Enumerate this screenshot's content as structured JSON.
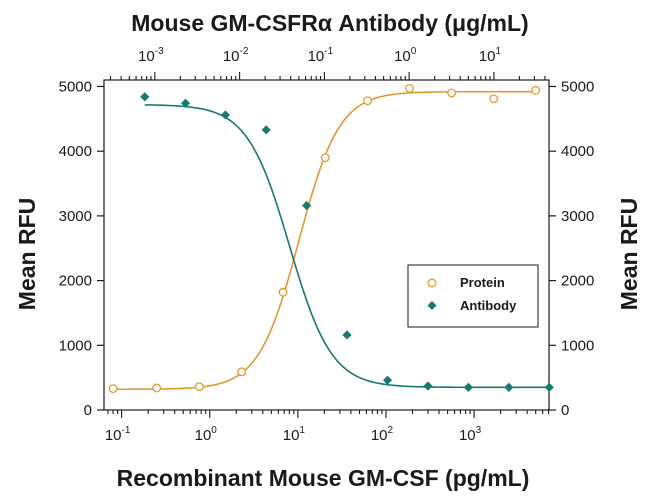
{
  "chart_data": {
    "type": "scatter",
    "top_axis_title": "Mouse GM-CSFRα Antibody (μg/mL)",
    "bottom_axis_title": "Recombinant Mouse GM-CSF (pg/mL)",
    "ylabel_left": "Mean RFU",
    "ylabel_right": "Mean RFU",
    "ylim": [
      0,
      5100
    ],
    "bottom_axis": {
      "scale": "log",
      "range_log10": [
        -1.2,
        3.85
      ],
      "ticks": [
        {
          "base": "10",
          "exp": "-1",
          "log10": -1
        },
        {
          "base": "10",
          "exp": "0",
          "log10": 0
        },
        {
          "base": "10",
          "exp": "1",
          "log10": 1
        },
        {
          "base": "10",
          "exp": "2",
          "log10": 2
        },
        {
          "base": "10",
          "exp": "3",
          "log10": 3
        }
      ]
    },
    "top_axis": {
      "scale": "log",
      "range_log10": [
        -3.6,
        1.65
      ],
      "ticks": [
        {
          "base": "10",
          "exp": "-3",
          "log10": -3
        },
        {
          "base": "10",
          "exp": "-2",
          "log10": -2
        },
        {
          "base": "10",
          "exp": "-1",
          "log10": -1
        },
        {
          "base": "10",
          "exp": "0",
          "log10": 0
        },
        {
          "base": "10",
          "exp": "1",
          "log10": 1
        }
      ]
    },
    "y_ticks": [
      "0",
      "1000",
      "2000",
      "3000",
      "4000",
      "5000"
    ],
    "legend": {
      "position": "right-middle",
      "entries": [
        "Protein",
        "Antibody"
      ]
    },
    "colors": {
      "protein": "#E29A2B",
      "antibody": "#157A72",
      "axis": "#1a1a1a"
    },
    "series": [
      {
        "name": "Protein",
        "axis": "bottom",
        "marker": "open-circle",
        "x": [
          0.08,
          0.25,
          0.76,
          2.3,
          6.8,
          20.5,
          61.7,
          185,
          556,
          1667,
          5000
        ],
        "y": [
          330,
          340,
          360,
          590,
          1820,
          3900,
          4780,
          4970,
          4900,
          4810,
          4940
        ],
        "fit": {
          "bottom": 320,
          "top": 4920,
          "ec50": 10.3,
          "hill": 1.9
        }
      },
      {
        "name": "Antibody",
        "axis": "top",
        "marker": "filled-diamond",
        "x": [
          0.00076,
          0.0023,
          0.0068,
          0.0206,
          0.0617,
          0.185,
          0.556,
          1.67,
          5.0,
          15.0,
          45.0
        ],
        "y": [
          4840,
          4740,
          4560,
          4330,
          3160,
          1160,
          460,
          370,
          350,
          350,
          350
        ],
        "fit": {
          "bottom": 350,
          "top": 4720,
          "ic50": 0.0388,
          "hill": 1.75
        }
      }
    ]
  }
}
